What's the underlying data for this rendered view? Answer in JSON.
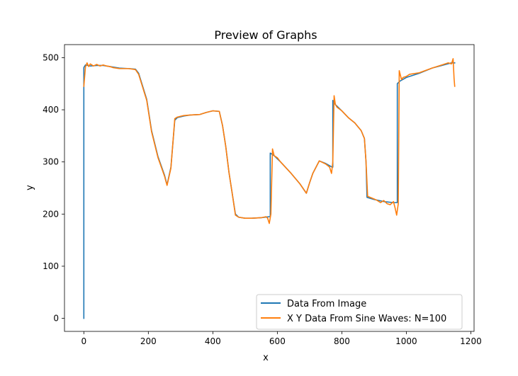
{
  "chart_data": {
    "type": "line",
    "title": "Preview of Graphs",
    "xlabel": "x",
    "ylabel": "y",
    "xlim": [
      -60,
      1210
    ],
    "ylim": [
      -25,
      525
    ],
    "x_ticks": [
      0,
      200,
      400,
      600,
      800,
      1000,
      1200
    ],
    "y_ticks": [
      0,
      100,
      200,
      300,
      400,
      500
    ],
    "grid": false,
    "legend_position": "lower right",
    "series": [
      {
        "name": "Data From Image",
        "color": "#1f77b4",
        "points": [
          [
            0,
            0
          ],
          [
            0,
            481
          ],
          [
            5,
            486
          ],
          [
            20,
            484
          ],
          [
            40,
            485
          ],
          [
            60,
            485
          ],
          [
            90,
            482
          ],
          [
            110,
            480
          ],
          [
            140,
            479
          ],
          [
            160,
            478
          ],
          [
            170,
            470
          ],
          [
            180,
            450
          ],
          [
            195,
            420
          ],
          [
            200,
            400
          ],
          [
            210,
            360
          ],
          [
            230,
            310
          ],
          [
            250,
            275
          ],
          [
            258,
            256
          ],
          [
            270,
            290
          ],
          [
            282,
            380
          ],
          [
            290,
            385
          ],
          [
            310,
            388
          ],
          [
            330,
            390
          ],
          [
            360,
            391
          ],
          [
            380,
            395
          ],
          [
            400,
            398
          ],
          [
            420,
            397
          ],
          [
            430,
            370
          ],
          [
            440,
            330
          ],
          [
            450,
            280
          ],
          [
            460,
            240
          ],
          [
            470,
            200
          ],
          [
            480,
            194
          ],
          [
            500,
            192
          ],
          [
            520,
            192
          ],
          [
            550,
            193
          ],
          [
            575,
            195
          ],
          [
            578,
            195
          ],
          [
            578,
            317
          ],
          [
            590,
            312
          ],
          [
            610,
            300
          ],
          [
            640,
            280
          ],
          [
            670,
            258
          ],
          [
            690,
            240
          ],
          [
            700,
            260
          ],
          [
            710,
            278
          ],
          [
            730,
            302
          ],
          [
            750,
            297
          ],
          [
            770,
            290
          ],
          [
            772,
            290
          ],
          [
            772,
            418
          ],
          [
            780,
            410
          ],
          [
            800,
            398
          ],
          [
            820,
            385
          ],
          [
            840,
            375
          ],
          [
            860,
            360
          ],
          [
            870,
            345
          ],
          [
            875,
            300
          ],
          [
            878,
            232
          ],
          [
            900,
            228
          ],
          [
            930,
            224
          ],
          [
            960,
            222
          ],
          [
            972,
            222
          ],
          [
            972,
            450
          ],
          [
            980,
            455
          ],
          [
            1000,
            462
          ],
          [
            1040,
            470
          ],
          [
            1080,
            480
          ],
          [
            1110,
            485
          ],
          [
            1140,
            490
          ],
          [
            1150,
            490
          ]
        ]
      },
      {
        "name": "X Y Data From Sine Waves: N=100",
        "color": "#ff7f0e",
        "points": [
          [
            0,
            445
          ],
          [
            5,
            482
          ],
          [
            10,
            490
          ],
          [
            15,
            483
          ],
          [
            20,
            488
          ],
          [
            30,
            484
          ],
          [
            40,
            487
          ],
          [
            50,
            484
          ],
          [
            60,
            486
          ],
          [
            70,
            484
          ],
          [
            80,
            483
          ],
          [
            90,
            481
          ],
          [
            110,
            479
          ],
          [
            140,
            479
          ],
          [
            160,
            477
          ],
          [
            170,
            468
          ],
          [
            180,
            448
          ],
          [
            195,
            418
          ],
          [
            200,
            398
          ],
          [
            210,
            358
          ],
          [
            230,
            308
          ],
          [
            250,
            273
          ],
          [
            258,
            255
          ],
          [
            270,
            288
          ],
          [
            282,
            383
          ],
          [
            290,
            386
          ],
          [
            310,
            389
          ],
          [
            330,
            390
          ],
          [
            360,
            391
          ],
          [
            380,
            395
          ],
          [
            400,
            398
          ],
          [
            420,
            397
          ],
          [
            430,
            370
          ],
          [
            440,
            330
          ],
          [
            450,
            280
          ],
          [
            460,
            240
          ],
          [
            470,
            198
          ],
          [
            480,
            194
          ],
          [
            500,
            192
          ],
          [
            520,
            192
          ],
          [
            550,
            193
          ],
          [
            565,
            195
          ],
          [
            570,
            192
          ],
          [
            575,
            182
          ],
          [
            580,
            200
          ],
          [
            585,
            325
          ],
          [
            590,
            312
          ],
          [
            600,
            308
          ],
          [
            610,
            300
          ],
          [
            640,
            280
          ],
          [
            670,
            258
          ],
          [
            690,
            240
          ],
          [
            700,
            260
          ],
          [
            710,
            278
          ],
          [
            730,
            302
          ],
          [
            750,
            296
          ],
          [
            762,
            290
          ],
          [
            768,
            278
          ],
          [
            772,
            300
          ],
          [
            776,
            427
          ],
          [
            780,
            410
          ],
          [
            785,
            405
          ],
          [
            800,
            398
          ],
          [
            820,
            385
          ],
          [
            840,
            375
          ],
          [
            860,
            360
          ],
          [
            870,
            345
          ],
          [
            875,
            300
          ],
          [
            880,
            234
          ],
          [
            900,
            229
          ],
          [
            910,
            226
          ],
          [
            920,
            222
          ],
          [
            930,
            226
          ],
          [
            940,
            220
          ],
          [
            950,
            218
          ],
          [
            960,
            224
          ],
          [
            965,
            212
          ],
          [
            970,
            198
          ],
          [
            975,
            220
          ],
          [
            978,
            475
          ],
          [
            985,
            458
          ],
          [
            990,
            462
          ],
          [
            1000,
            464
          ],
          [
            1010,
            468
          ],
          [
            1040,
            471
          ],
          [
            1080,
            480
          ],
          [
            1110,
            486
          ],
          [
            1130,
            490
          ],
          [
            1140,
            488
          ],
          [
            1145,
            498
          ],
          [
            1148,
            460
          ],
          [
            1150,
            445
          ]
        ]
      }
    ]
  }
}
